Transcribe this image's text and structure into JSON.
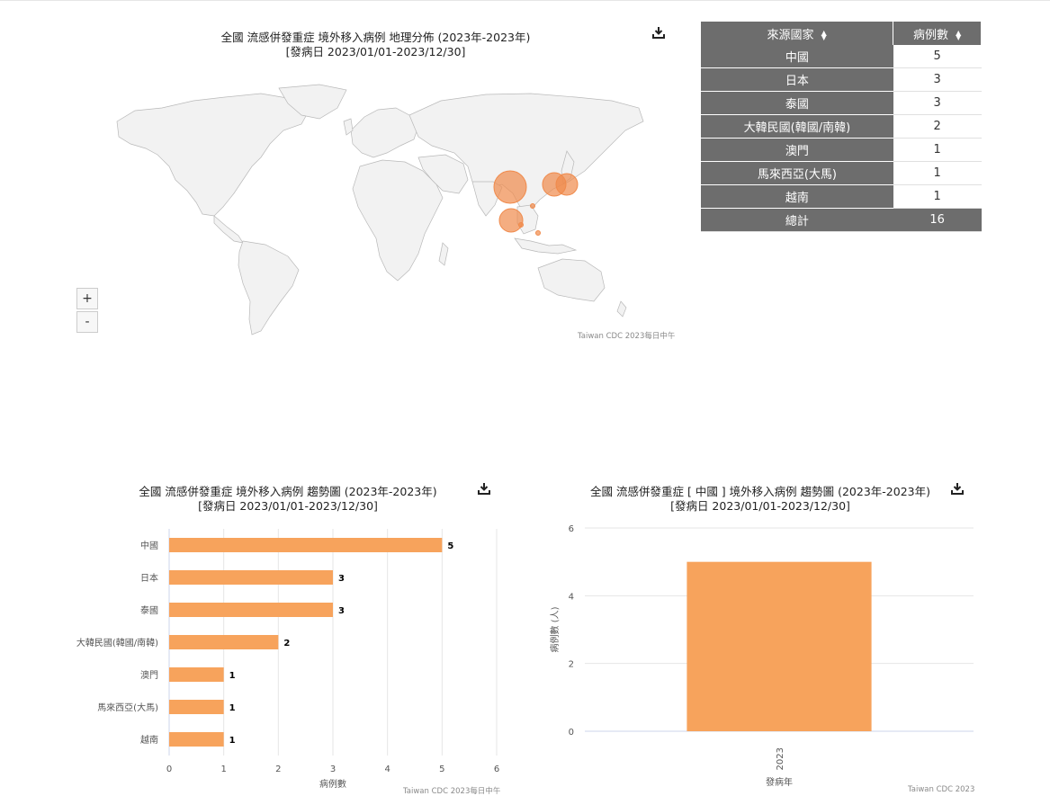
{
  "map": {
    "title": "全國 流感併發重症 境外移入病例 地理分佈 (2023年-2023年)",
    "subtitle": "[發病日 2023/01/01-2023/12/30]",
    "credit": "Taiwan CDC 2023每日中午",
    "zoom_in": "+",
    "zoom_out": "-",
    "bubble_color": "#f08a4b",
    "land_color": "#f2f2f2"
  },
  "table": {
    "col1": "來源國家",
    "col2": "病例數",
    "rows": [
      {
        "country": "中國",
        "count": "5"
      },
      {
        "country": "日本",
        "count": "3"
      },
      {
        "country": "泰國",
        "count": "3"
      },
      {
        "country": "大韓民國(韓國/南韓)",
        "count": "2"
      },
      {
        "country": "澳門",
        "count": "1"
      },
      {
        "country": "馬來西亞(大馬)",
        "count": "1"
      },
      {
        "country": "越南",
        "count": "1"
      }
    ],
    "total_label": "總計",
    "total": "16"
  },
  "bar1": {
    "title": "全國 流感併發重症 境外移入病例 趨勢圖 (2023年-2023年)",
    "subtitle": "[發病日 2023/01/01-2023/12/30]",
    "credit": "Taiwan CDC 2023每日中午"
  },
  "bar2": {
    "title": "全國 流感併發重症 [ 中國 ] 境外移入病例 趨勢圖 (2023年-2023年)",
    "subtitle": "[發病日 2023/01/01-2023/12/30]",
    "credit": "Taiwan CDC 2023"
  },
  "chart_data": [
    {
      "type": "bar",
      "orientation": "horizontal",
      "title": "全國 流感併發重症 境外移入病例 趨勢圖 (2023年-2023年)",
      "subtitle": "[發病日 2023/01/01-2023/12/30]",
      "categories": [
        "中國",
        "日本",
        "泰國",
        "大韓民國(韓國/南韓)",
        "澳門",
        "馬來西亞(大馬)",
        "越南"
      ],
      "values": [
        5,
        3,
        3,
        2,
        1,
        1,
        1
      ],
      "xlabel": "病例數",
      "xlim": [
        0,
        6
      ],
      "xticks": [
        0,
        1,
        2,
        3,
        4,
        5,
        6
      ],
      "grid": true,
      "data_labels": true,
      "color": "#f7a35c"
    },
    {
      "type": "bar",
      "title": "全國 流感併發重症 [ 中國 ] 境外移入病例 趨勢圖 (2023年-2023年)",
      "subtitle": "[發病日 2023/01/01-2023/12/30]",
      "categories": [
        "2023"
      ],
      "values": [
        5
      ],
      "xlabel": "發病年",
      "ylabel": "病例數 (人)",
      "ylim": [
        0,
        6
      ],
      "yticks": [
        0,
        2,
        4,
        6
      ],
      "grid": true,
      "color": "#f7a35c"
    }
  ]
}
